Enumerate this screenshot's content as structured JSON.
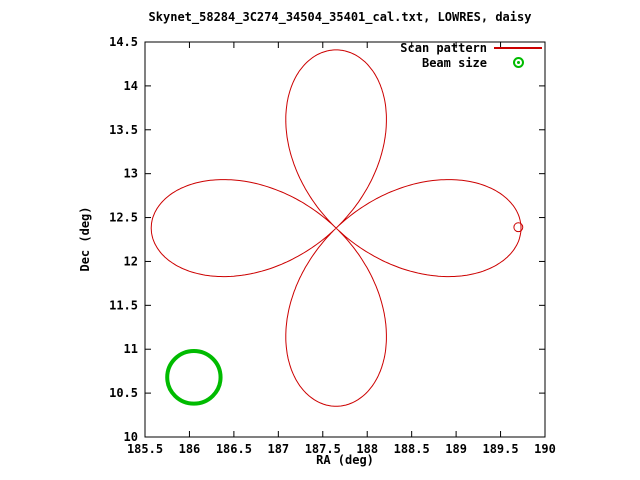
{
  "chart_data": {
    "type": "line",
    "title": "Skynet_58284_3C274_34504_35401_cal.txt, LOWRES, daisy",
    "xlabel": "RA (deg)",
    "ylabel": "Dec (deg)",
    "xlim": [
      185.5,
      190
    ],
    "ylim": [
      10,
      14.5
    ],
    "xticks": {
      "values": [
        185.5,
        186,
        186.5,
        187,
        187.5,
        188,
        188.5,
        189,
        189.5,
        190
      ],
      "labels": [
        "185.5",
        "186",
        "186.5",
        "187",
        "187.5",
        "188",
        "188.5",
        "189",
        "189.5",
        "190"
      ]
    },
    "yticks": {
      "values": [
        10,
        10.5,
        11,
        11.5,
        12,
        12.5,
        13,
        13.5,
        14,
        14.5
      ],
      "labels": [
        "10",
        "10.5",
        "11",
        "11.5",
        "12",
        "12.5",
        "13",
        "13.5",
        "14",
        "14.5"
      ]
    },
    "grid": false,
    "legend_position": "top-right-inside",
    "legend": [
      {
        "label": "Scan pattern",
        "color": "#cc0000",
        "sample": "line"
      },
      {
        "label": "Beam size",
        "color": "#00bb00",
        "sample": "point"
      }
    ],
    "series": [
      {
        "name": "Scan pattern",
        "shape": "rose",
        "curve": "r = A*cos(2*theta), 4 petals aligned up/down/left/right",
        "petal_count": 4,
        "center_deg": [
          187.65,
          12.38
        ],
        "amplitude_deg": [
          2.08,
          2.03
        ],
        "samples": 721,
        "color": "#cc0000",
        "end_mark": {
          "center_deg": [
            189.7,
            12.39
          ],
          "radius_deg": 0.05
        }
      },
      {
        "name": "Beam size",
        "shape": "circle",
        "center_deg": [
          186.05,
          10.68
        ],
        "radius_deg": 0.3,
        "color": "#00bb00",
        "stroke_px": 4
      }
    ]
  },
  "layout_note": "gnuplot-style daisy scan pattern plot"
}
